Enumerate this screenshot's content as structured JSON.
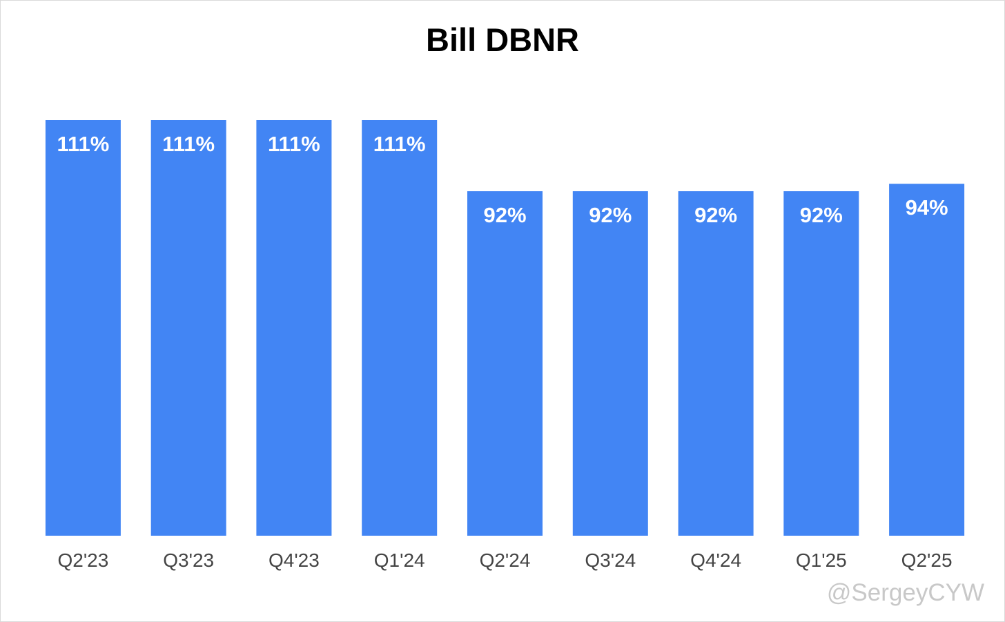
{
  "chart_data": {
    "type": "bar",
    "title": "Bill DBNR",
    "categories": [
      "Q2'23",
      "Q3'23",
      "Q4'23",
      "Q1'24",
      "Q2'24",
      "Q3'24",
      "Q4'24",
      "Q1'25",
      "Q2'25"
    ],
    "values": [
      111,
      111,
      111,
      111,
      92,
      92,
      92,
      92,
      94
    ],
    "data_labels": [
      "111%",
      "111%",
      "111%",
      "111%",
      "92%",
      "92%",
      "92%",
      "92%",
      "94%"
    ],
    "unit": "%",
    "ylim": [
      0,
      111
    ],
    "grid": false,
    "legend": "none",
    "bar_color": "#4285f4",
    "label_color": "#ffffff",
    "tick_color": "#444444"
  },
  "watermark": "@SergeyCYW"
}
